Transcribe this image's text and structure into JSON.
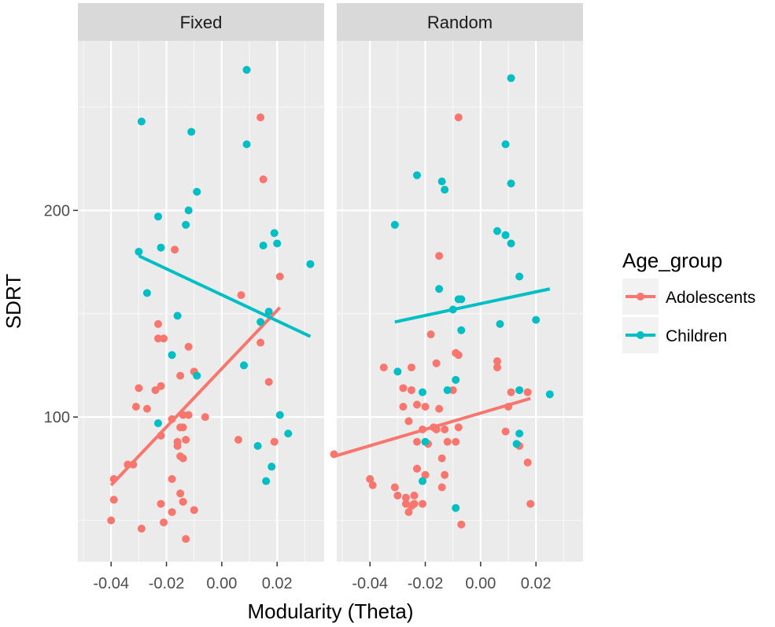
{
  "chart_data": {
    "type": "scatter",
    "xlabel": "Modularity (Theta)",
    "ylabel": "SDRT",
    "xlim": [
      -0.052,
      0.037
    ],
    "ylim": [
      30,
      282
    ],
    "x_ticks": [
      -0.04,
      -0.02,
      0.0,
      0.02
    ],
    "x_tick_labels": [
      "-0.04",
      "-0.02",
      "0.00",
      "0.02"
    ],
    "y_ticks": [
      100,
      200
    ],
    "y_tick_labels": [
      "100",
      "200"
    ],
    "legend": {
      "title": "Age_group",
      "position": "right",
      "entries": [
        {
          "name": "Adolescents",
          "color": "#F8766D"
        },
        {
          "name": "Children",
          "color": "#00BFC4"
        }
      ]
    },
    "panels": [
      {
        "title": "Fixed",
        "series": [
          {
            "name": "Adolescents",
            "color": "#F8766D",
            "points": [
              [
                0.014,
                245
              ],
              [
                0.015,
                215
              ],
              [
                -0.017,
                181
              ],
              [
                0.007,
                159
              ],
              [
                0.021,
                168
              ],
              [
                0.014,
                136
              ],
              [
                -0.023,
                145
              ],
              [
                -0.023,
                138
              ],
              [
                -0.021,
                138
              ],
              [
                -0.012,
                134
              ],
              [
                -0.01,
                122
              ],
              [
                -0.015,
                120
              ],
              [
                0.017,
                117
              ],
              [
                -0.03,
                114
              ],
              [
                -0.022,
                115
              ],
              [
                -0.024,
                113
              ],
              [
                -0.031,
                105
              ],
              [
                -0.027,
                104
              ],
              [
                -0.018,
                99
              ],
              [
                -0.014,
                101
              ],
              [
                -0.012,
                101
              ],
              [
                -0.006,
                100
              ],
              [
                -0.015,
                95
              ],
              [
                -0.014,
                95
              ],
              [
                -0.022,
                91
              ],
              [
                -0.016,
                88
              ],
              [
                -0.013,
                89
              ],
              [
                -0.016,
                86
              ],
              [
                0.006,
                89
              ],
              [
                0.019,
                88
              ],
              [
                -0.015,
                81
              ],
              [
                -0.014,
                80
              ],
              [
                -0.034,
                77
              ],
              [
                -0.032,
                77
              ],
              [
                -0.039,
                70
              ],
              [
                -0.018,
                70
              ],
              [
                -0.015,
                63
              ],
              [
                -0.039,
                60
              ],
              [
                -0.022,
                58
              ],
              [
                -0.014,
                59
              ],
              [
                -0.018,
                54
              ],
              [
                -0.01,
                55
              ],
              [
                -0.04,
                50
              ],
              [
                -0.021,
                49
              ],
              [
                -0.029,
                46
              ],
              [
                -0.013,
                41
              ]
            ]
          },
          {
            "name": "Children",
            "color": "#00BFC4",
            "points": [
              [
                0.009,
                268
              ],
              [
                -0.029,
                243
              ],
              [
                -0.011,
                238
              ],
              [
                0.009,
                232
              ],
              [
                -0.009,
                209
              ],
              [
                -0.012,
                200
              ],
              [
                -0.023,
                197
              ],
              [
                -0.013,
                193
              ],
              [
                0.019,
                189
              ],
              [
                0.02,
                184
              ],
              [
                0.015,
                183
              ],
              [
                -0.022,
                182
              ],
              [
                -0.03,
                180
              ],
              [
                0.032,
                174
              ],
              [
                -0.027,
                160
              ],
              [
                0.017,
                151
              ],
              [
                -0.016,
                149
              ],
              [
                0.014,
                146
              ],
              [
                -0.018,
                130
              ],
              [
                0.008,
                125
              ],
              [
                -0.009,
                120
              ],
              [
                0.021,
                101
              ],
              [
                -0.023,
                97
              ],
              [
                0.024,
                92
              ],
              [
                0.013,
                86
              ],
              [
                0.018,
                76
              ],
              [
                0.016,
                69
              ]
            ]
          }
        ],
        "fits": [
          {
            "name": "Adolescents",
            "color": "#F8766D",
            "x": [
              -0.04,
              0.021
            ],
            "y": [
              67,
              153
            ]
          },
          {
            "name": "Children",
            "color": "#00BFC4",
            "x": [
              -0.03,
              0.032
            ],
            "y": [
              178,
              139
            ]
          }
        ]
      },
      {
        "title": "Random",
        "series": [
          {
            "name": "Adolescents",
            "color": "#F8766D",
            "points": [
              [
                -0.008,
                245
              ],
              [
                -0.015,
                178
              ],
              [
                -0.018,
                140
              ],
              [
                -0.016,
                126
              ],
              [
                -0.009,
                131
              ],
              [
                -0.008,
                130
              ],
              [
                0.006,
                127
              ],
              [
                0.006,
                124
              ],
              [
                -0.035,
                124
              ],
              [
                -0.025,
                124
              ],
              [
                -0.028,
                114
              ],
              [
                -0.025,
                113
              ],
              [
                0.011,
                112
              ],
              [
                0.017,
                112
              ],
              [
                -0.01,
                113
              ],
              [
                0.01,
                105
              ],
              [
                -0.028,
                105
              ],
              [
                -0.023,
                106
              ],
              [
                -0.02,
                105
              ],
              [
                -0.015,
                104
              ],
              [
                -0.026,
                98
              ],
              [
                -0.021,
                94
              ],
              [
                -0.017,
                95
              ],
              [
                -0.016,
                94
              ],
              [
                -0.013,
                94
              ],
              [
                -0.008,
                95
              ],
              [
                0.009,
                93
              ],
              [
                -0.023,
                88
              ],
              [
                -0.019,
                87
              ],
              [
                -0.012,
                88
              ],
              [
                -0.009,
                88
              ],
              [
                0.014,
                86
              ],
              [
                -0.053,
                82
              ],
              [
                -0.014,
                80
              ],
              [
                0.017,
                78
              ],
              [
                -0.023,
                75
              ],
              [
                -0.02,
                72
              ],
              [
                -0.013,
                72
              ],
              [
                -0.04,
                70
              ],
              [
                -0.039,
                67
              ],
              [
                -0.031,
                66
              ],
              [
                -0.014,
                66
              ],
              [
                -0.03,
                62
              ],
              [
                -0.027,
                61
              ],
              [
                -0.024,
                62
              ],
              [
                -0.027,
                58
              ],
              [
                -0.025,
                57
              ],
              [
                -0.024,
                58
              ],
              [
                -0.021,
                58
              ],
              [
                0.018,
                58
              ],
              [
                -0.026,
                54
              ],
              [
                -0.007,
                48
              ]
            ]
          },
          {
            "name": "Children",
            "color": "#00BFC4",
            "points": [
              [
                0.011,
                264
              ],
              [
                0.009,
                232
              ],
              [
                -0.023,
                217
              ],
              [
                -0.014,
                214
              ],
              [
                -0.013,
                210
              ],
              [
                0.011,
                213
              ],
              [
                -0.031,
                193
              ],
              [
                0.006,
                190
              ],
              [
                0.009,
                188
              ],
              [
                0.011,
                184
              ],
              [
                0.014,
                168
              ],
              [
                -0.015,
                162
              ],
              [
                -0.008,
                157
              ],
              [
                -0.007,
                157
              ],
              [
                -0.01,
                152
              ],
              [
                0.02,
                147
              ],
              [
                0.007,
                145
              ],
              [
                -0.007,
                142
              ],
              [
                -0.03,
                122
              ],
              [
                -0.021,
                112
              ],
              [
                -0.012,
                113
              ],
              [
                -0.009,
                118
              ],
              [
                0.025,
                111
              ],
              [
                0.014,
                113
              ],
              [
                -0.02,
                88
              ],
              [
                0.014,
                92
              ],
              [
                0.013,
                87
              ],
              [
                -0.021,
                69
              ],
              [
                -0.009,
                56
              ]
            ]
          }
        ],
        "fits": [
          {
            "name": "Adolescents",
            "color": "#F8766D",
            "x": [
              -0.053,
              0.018
            ],
            "y": [
              81,
              109
            ]
          },
          {
            "name": "Children",
            "color": "#00BFC4",
            "x": [
              -0.031,
              0.025
            ],
            "y": [
              146,
              162
            ]
          }
        ]
      }
    ]
  }
}
